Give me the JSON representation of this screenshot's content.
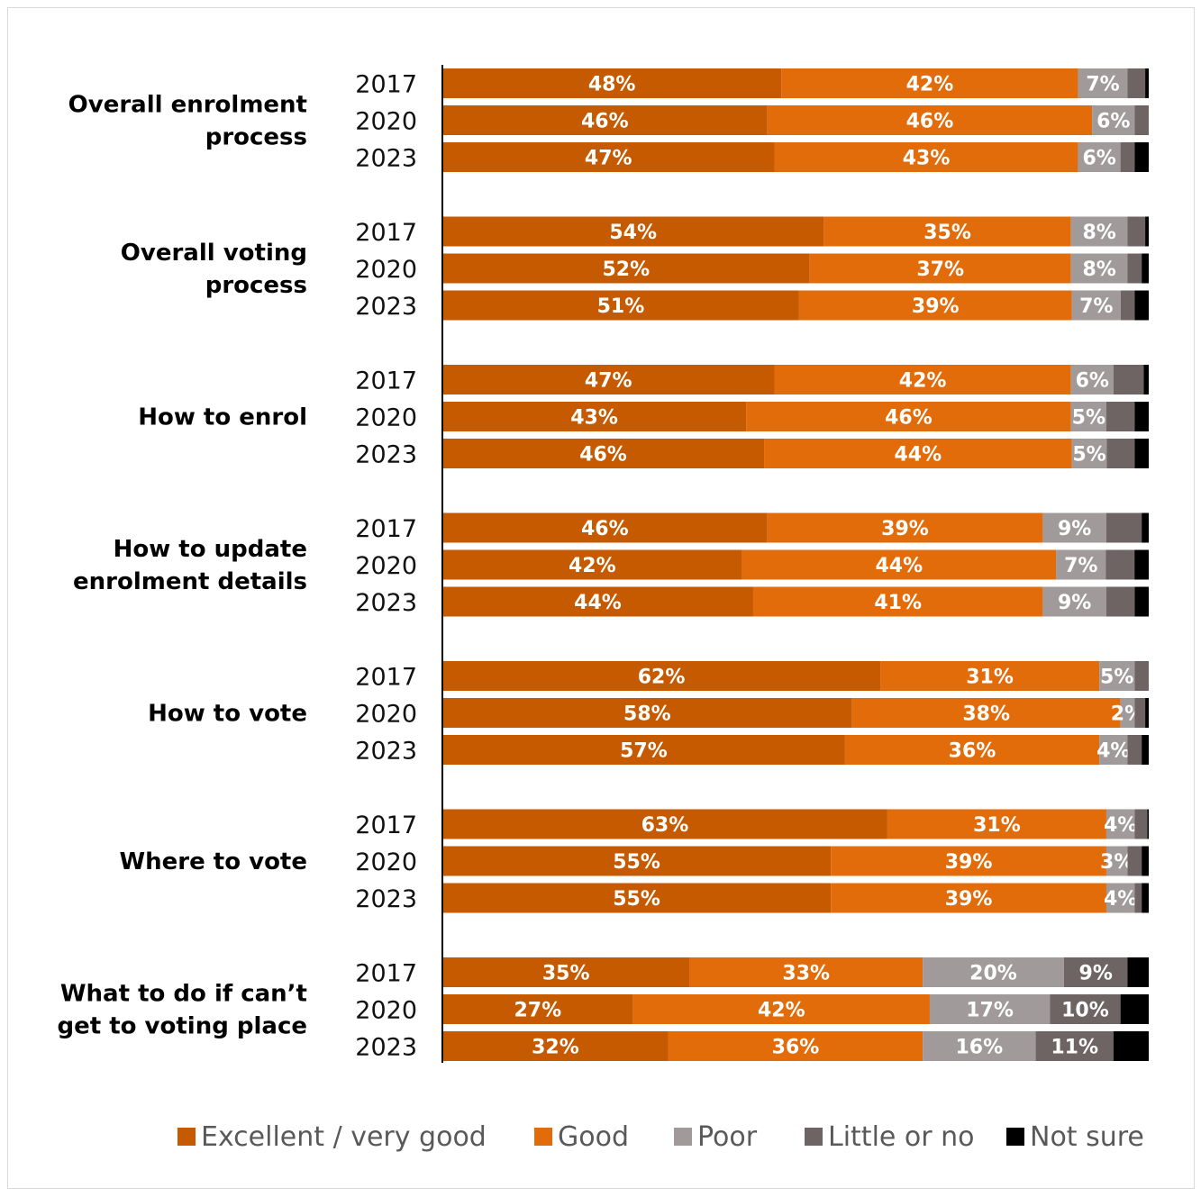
{
  "chart_data": {
    "type": "bar",
    "orientation": "horizontal",
    "stacked": true,
    "percent_scale": true,
    "grid": false,
    "legend_position": "bottom",
    "series": [
      {
        "name": "Excellent / very good",
        "color": "#C55A00"
      },
      {
        "name": "Good",
        "color": "#E36C0A"
      },
      {
        "name": "Poor",
        "color": "#A19A9A"
      },
      {
        "name": "Little or no",
        "color": "#6E6464"
      },
      {
        "name": "Not sure",
        "color": "#000000"
      }
    ],
    "groups": [
      {
        "label_lines": [
          "Overall enrolment",
          "process"
        ],
        "rows": [
          {
            "year": "2017",
            "values": [
              48,
              42,
              7,
              2.5,
              0.5
            ],
            "labels": [
              "48%",
              "42%",
              "7%",
              "",
              ""
            ]
          },
          {
            "year": "2020",
            "values": [
              46,
              46,
              6,
              2,
              0
            ],
            "labels": [
              "46%",
              "46%",
              "6%",
              "",
              ""
            ]
          },
          {
            "year": "2023",
            "values": [
              47,
              43,
              6,
              2,
              2
            ],
            "labels": [
              "47%",
              "43%",
              "6%",
              "",
              ""
            ]
          }
        ]
      },
      {
        "label_lines": [
          "Overall voting",
          "process"
        ],
        "rows": [
          {
            "year": "2017",
            "values": [
              54,
              35,
              8,
              2.5,
              0.5
            ],
            "labels": [
              "54%",
              "35%",
              "8%",
              "",
              ""
            ]
          },
          {
            "year": "2020",
            "values": [
              52,
              37,
              8,
              2,
              1
            ],
            "labels": [
              "52%",
              "37%",
              "8%",
              "",
              ""
            ]
          },
          {
            "year": "2023",
            "values": [
              51,
              39,
              7,
              2,
              2
            ],
            "labels": [
              "51%",
              "39%",
              "7%",
              "",
              ""
            ]
          }
        ]
      },
      {
        "label_lines": [
          "How to enrol"
        ],
        "rows": [
          {
            "year": "2017",
            "values": [
              47,
              42,
              6,
              4.3,
              0.7
            ],
            "labels": [
              "47%",
              "42%",
              "6%",
              "",
              ""
            ]
          },
          {
            "year": "2020",
            "values": [
              43,
              46,
              5,
              4,
              2
            ],
            "labels": [
              "43%",
              "46%",
              "5%",
              "",
              ""
            ]
          },
          {
            "year": "2023",
            "values": [
              46,
              44,
              5,
              4,
              2
            ],
            "labels": [
              "46%",
              "44%",
              "5%",
              "",
              ""
            ]
          }
        ]
      },
      {
        "label_lines": [
          "How to update",
          "enrolment details"
        ],
        "rows": [
          {
            "year": "2017",
            "values": [
              46,
              39,
              9,
              5,
              1
            ],
            "labels": [
              "46%",
              "39%",
              "9%",
              "",
              ""
            ]
          },
          {
            "year": "2020",
            "values": [
              42,
              44,
              7,
              4,
              2
            ],
            "labels": [
              "42%",
              "44%",
              "7%",
              "",
              ""
            ]
          },
          {
            "year": "2023",
            "values": [
              44,
              41,
              9,
              4,
              2
            ],
            "labels": [
              "44%",
              "41%",
              "9%",
              "",
              ""
            ]
          }
        ]
      },
      {
        "label_lines": [
          "How to vote"
        ],
        "rows": [
          {
            "year": "2017",
            "values": [
              62,
              31,
              5,
              2,
              0
            ],
            "labels": [
              "62%",
              "31%",
              "5%",
              "",
              ""
            ]
          },
          {
            "year": "2020",
            "values": [
              58,
              38,
              2,
              1.5,
              0.5
            ],
            "labels": [
              "58%",
              "38%",
              "2%",
              "",
              ""
            ]
          },
          {
            "year": "2023",
            "values": [
              57,
              36,
              4,
              2,
              1
            ],
            "labels": [
              "57%",
              "36%",
              "4%",
              "",
              ""
            ]
          }
        ]
      },
      {
        "label_lines": [
          "Where to vote"
        ],
        "rows": [
          {
            "year": "2017",
            "values": [
              63,
              31,
              4,
              1.8,
              0.2
            ],
            "labels": [
              "63%",
              "31%",
              "4%",
              "",
              ""
            ]
          },
          {
            "year": "2020",
            "values": [
              55,
              39,
              3,
              2,
              1
            ],
            "labels": [
              "55%",
              "39%",
              "3%",
              "",
              ""
            ]
          },
          {
            "year": "2023",
            "values": [
              55,
              39,
              4,
              1,
              1
            ],
            "labels": [
              "55%",
              "39%",
              "4%",
              "",
              ""
            ]
          }
        ]
      },
      {
        "label_lines": [
          "What to do if can’t",
          "get to voting place"
        ],
        "rows": [
          {
            "year": "2017",
            "values": [
              35,
              33,
              20,
              9,
              3
            ],
            "labels": [
              "35%",
              "33%",
              "20%",
              "9%",
              ""
            ]
          },
          {
            "year": "2020",
            "values": [
              27,
              42,
              17,
              10,
              4
            ],
            "labels": [
              "27%",
              "42%",
              "17%",
              "10%",
              ""
            ]
          },
          {
            "year": "2023",
            "values": [
              32,
              36,
              16,
              11,
              5
            ],
            "labels": [
              "32%",
              "36%",
              "16%",
              "11%",
              ""
            ]
          }
        ]
      }
    ]
  }
}
